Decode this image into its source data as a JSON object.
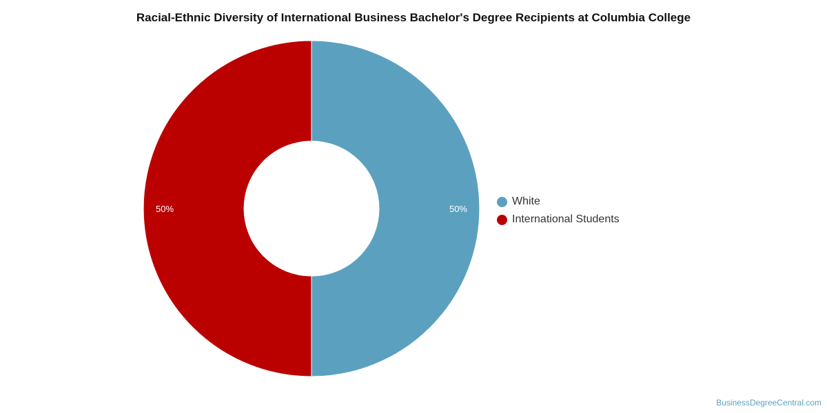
{
  "chart_data": {
    "type": "pie",
    "title": "Racial-Ethnic Diversity of International Business Bachelor's Degree Recipients at Columbia College",
    "donut": true,
    "categories": [
      "White",
      "International Students"
    ],
    "values": [
      50,
      50
    ],
    "labels": [
      "50%",
      "50%"
    ],
    "colors": [
      "#5ba1bf",
      "#bb0000"
    ],
    "legend_position": "right"
  },
  "credit": "BusinessDegreeCentral.com"
}
